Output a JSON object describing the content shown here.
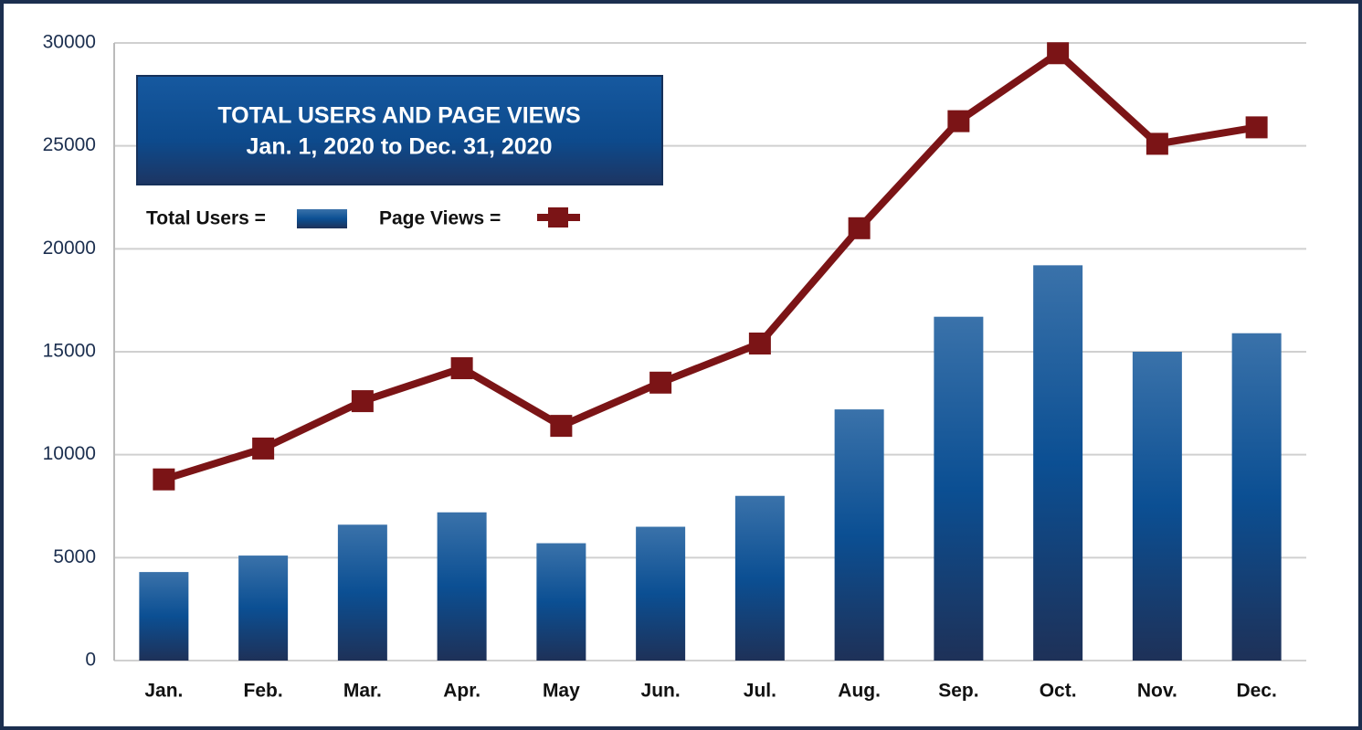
{
  "chart_data": {
    "type": "bar-line",
    "title": "TOTAL USERS  AND PAGE VIEWS",
    "subtitle": "Jan. 1, 2020 to Dec. 31, 2020",
    "categories": [
      "Jan.",
      "Feb.",
      "Mar.",
      "Apr.",
      "May",
      "Jun.",
      "Jul.",
      "Aug.",
      "Sep.",
      "Oct.",
      "Nov.",
      "Dec."
    ],
    "series": [
      {
        "name": "Total Users =",
        "type": "bar",
        "color": "#0b4f93",
        "values": [
          4300,
          5100,
          6600,
          7200,
          5700,
          6500,
          8000,
          12200,
          16700,
          19200,
          15000,
          15900
        ]
      },
      {
        "name": "Page Views =",
        "type": "line",
        "color": "#7b1416",
        "values": [
          8800,
          10300,
          12600,
          14200,
          11400,
          13500,
          15400,
          21000,
          26200,
          29500,
          25100,
          25900
        ]
      }
    ],
    "ylim": [
      0,
      30000
    ],
    "yticks": [
      0,
      5000,
      10000,
      15000,
      20000,
      25000,
      30000
    ],
    "grid": true
  }
}
